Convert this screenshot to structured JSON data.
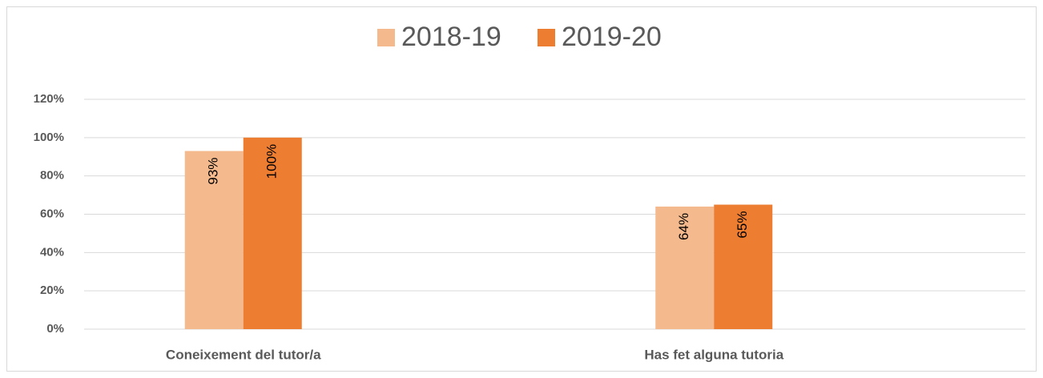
{
  "chart_data": {
    "type": "bar",
    "categories": [
      "Coneixement del tutor/a",
      "Has fet alguna tutoria"
    ],
    "series": [
      {
        "name": "2018-19",
        "color": "#f4b98d",
        "values": [
          93,
          64
        ],
        "value_labels": [
          "93%",
          "64%"
        ]
      },
      {
        "name": "2019-20",
        "color": "#ed7d31",
        "values": [
          100,
          65
        ],
        "value_labels": [
          "100%",
          "65%"
        ]
      }
    ],
    "ylim": [
      0,
      120
    ],
    "yticks": [
      {
        "value": 0,
        "label": "0%"
      },
      {
        "value": 20,
        "label": "20%"
      },
      {
        "value": 40,
        "label": "40%"
      },
      {
        "value": 60,
        "label": "60%"
      },
      {
        "value": 80,
        "label": "80%"
      },
      {
        "value": 100,
        "label": "100%"
      },
      {
        "value": 120,
        "label": "120%"
      }
    ],
    "grid": true,
    "legend": "top"
  }
}
